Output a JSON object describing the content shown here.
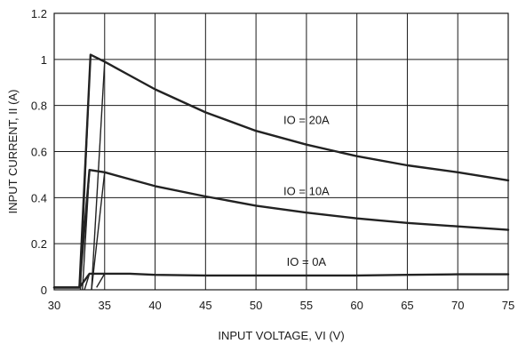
{
  "chart_data": {
    "type": "line",
    "title": "",
    "xlabel": "INPUT VOLTAGE, VI (V)",
    "ylabel": "INPUT CURRENT, II (A)",
    "xlim": [
      30,
      75
    ],
    "ylim": [
      0,
      1.2
    ],
    "x_ticks": [
      "30",
      "35",
      "40",
      "45",
      "50",
      "55",
      "60",
      "65",
      "70",
      "75"
    ],
    "y_ticks": [
      "0",
      "0.2",
      "0.4",
      "0.6",
      "0.8",
      "1",
      "1.2"
    ],
    "grid": true,
    "series": [
      {
        "name": "IO = 20A",
        "label": "IO = 20A",
        "label_at": [
          55,
          0.72
        ],
        "values": [
          [
            30,
            0.01
          ],
          [
            32.5,
            0.01
          ],
          [
            33.6,
            1.02
          ],
          [
            35,
            0.99
          ],
          [
            37.5,
            0.93
          ],
          [
            40,
            0.87
          ],
          [
            45,
            0.77
          ],
          [
            50,
            0.69
          ],
          [
            55,
            0.63
          ],
          [
            60,
            0.58
          ],
          [
            65,
            0.54
          ],
          [
            70,
            0.51
          ],
          [
            75,
            0.475
          ]
        ],
        "rise_lines": [
          [
            [
              32.6,
              0.0
            ],
            [
              33.6,
              1.02
            ]
          ],
          [
            [
              33.7,
              0.0
            ],
            [
              35.0,
              0.99
            ]
          ]
        ]
      },
      {
        "name": "IO = 10A",
        "label": "IO = 10A",
        "label_at": [
          55,
          0.41
        ],
        "values": [
          [
            30,
            0.01
          ],
          [
            32.5,
            0.01
          ],
          [
            33.5,
            0.52
          ],
          [
            35,
            0.51
          ],
          [
            37.5,
            0.48
          ],
          [
            40,
            0.45
          ],
          [
            45,
            0.405
          ],
          [
            50,
            0.365
          ],
          [
            55,
            0.335
          ],
          [
            60,
            0.31
          ],
          [
            65,
            0.29
          ],
          [
            70,
            0.275
          ],
          [
            75,
            0.26
          ]
        ],
        "rise_lines": [
          [
            [
              32.8,
              0.0
            ],
            [
              33.5,
              0.52
            ]
          ],
          [
            [
              33.7,
              0.0
            ],
            [
              35.0,
              0.51
            ]
          ]
        ]
      },
      {
        "name": "IO = 0A",
        "label": "IO = 0A",
        "label_at": [
          55,
          0.105
        ],
        "values": [
          [
            30,
            0.01
          ],
          [
            32.5,
            0.01
          ],
          [
            33.5,
            0.07
          ],
          [
            35,
            0.07
          ],
          [
            37.5,
            0.07
          ],
          [
            40,
            0.065
          ],
          [
            45,
            0.062
          ],
          [
            50,
            0.062
          ],
          [
            55,
            0.062
          ],
          [
            60,
            0.062
          ],
          [
            65,
            0.065
          ],
          [
            70,
            0.067
          ],
          [
            75,
            0.067
          ]
        ],
        "rise_lines": [
          [
            [
              33.0,
              0.0
            ],
            [
              33.5,
              0.07
            ]
          ],
          [
            [
              34.2,
              0.01
            ],
            [
              35.0,
              0.07
            ]
          ]
        ]
      }
    ]
  }
}
